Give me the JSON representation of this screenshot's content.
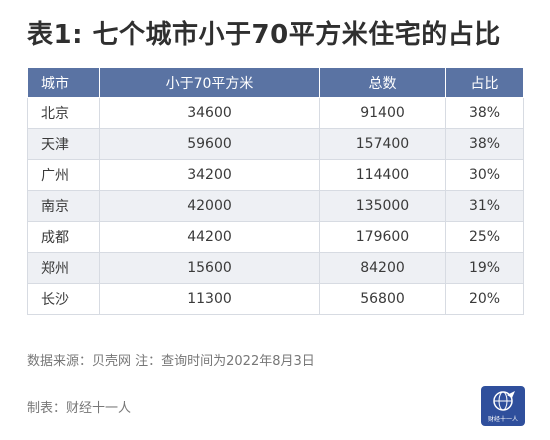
{
  "title": "表1: 七个城市小于70平方米住宅的占比",
  "chart_data": {
    "type": "table",
    "columns": [
      "城市",
      "小于70平方米",
      "总数",
      "占比"
    ],
    "rows": [
      {
        "city": "北京",
        "small": "34600",
        "total": "91400",
        "ratio": "38%"
      },
      {
        "city": "天津",
        "small": "59600",
        "total": "157400",
        "ratio": "38%"
      },
      {
        "city": "广州",
        "small": "34200",
        "total": "114400",
        "ratio": "30%"
      },
      {
        "city": "南京",
        "small": "42000",
        "total": "135000",
        "ratio": "31%"
      },
      {
        "city": "成都",
        "small": "44200",
        "total": "179600",
        "ratio": "25%"
      },
      {
        "city": "郑州",
        "small": "15600",
        "total": "84200",
        "ratio": "19%"
      },
      {
        "city": "长沙",
        "small": "11300",
        "total": "56800",
        "ratio": "20%"
      }
    ]
  },
  "footer": {
    "source_note": "数据来源：贝壳网 注：查询时间为2022年8月3日",
    "maker": "制表：财经十一人"
  },
  "logo": {
    "text": "财经十一人",
    "icon": "globe-logo-icon",
    "color": "#2f4f9c"
  },
  "colors": {
    "header_bg": "#5a73a3",
    "stripe_bg": "#eef0f4"
  }
}
